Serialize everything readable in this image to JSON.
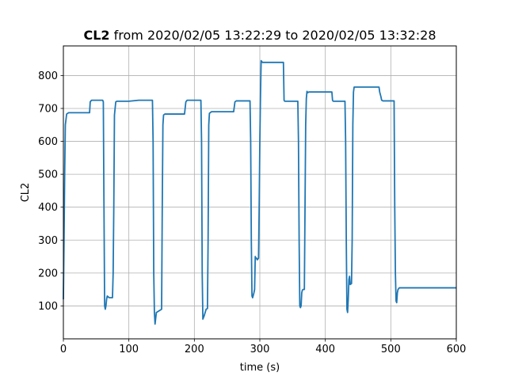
{
  "chart_data": {
    "type": "line",
    "title_bold": "CL2",
    "title_rest": " from 2020/02/05 13:22:29 to 2020/02/05 13:32:28",
    "xlabel": "time (s)",
    "ylabel": "CL2",
    "xlim": [
      0,
      600
    ],
    "ylim": [
      0,
      890
    ],
    "xticks": [
      0,
      100,
      200,
      300,
      400,
      500,
      600
    ],
    "yticks": [
      100,
      200,
      300,
      400,
      500,
      600,
      700,
      800
    ],
    "grid": true,
    "line_color": "#1f77b4",
    "series": [
      {
        "x": [
          0,
          1,
          2,
          3,
          5,
          8,
          40,
          41,
          43,
          60,
          61,
          62,
          63,
          64,
          65,
          66,
          67,
          70,
          75,
          76,
          77,
          78,
          80,
          82,
          100,
          115,
          136,
          137,
          138,
          139,
          140,
          142,
          150,
          151,
          152,
          153,
          155,
          185,
          187,
          189,
          210,
          211,
          212,
          213,
          215,
          218,
          220,
          221,
          222,
          223,
          226,
          230,
          260,
          262,
          264,
          285,
          286,
          287,
          288,
          289,
          291,
          292,
          293,
          294,
          295,
          296,
          298,
          299,
          300,
          301,
          302,
          304,
          315,
          336,
          337,
          338,
          340,
          358,
          359,
          360,
          361,
          362,
          363,
          364,
          365,
          366,
          368,
          369,
          370,
          371,
          372,
          373,
          375,
          410,
          411,
          412,
          413,
          430,
          431,
          432,
          433,
          434,
          435,
          436,
          437,
          438,
          440,
          441,
          442,
          443,
          444,
          446,
          475,
          482,
          483,
          485,
          486,
          488,
          505,
          506,
          507,
          508,
          509,
          510,
          511,
          513,
          515,
          600
        ],
        "y": [
          120,
          300,
          500,
          650,
          683,
          687,
          687,
          720,
          725,
          725,
          720,
          400,
          100,
          90,
          100,
          120,
          130,
          125,
          125,
          200,
          400,
          680,
          720,
          722,
          722,
          725,
          725,
          600,
          200,
          80,
          45,
          80,
          90,
          400,
          650,
          680,
          683,
          683,
          720,
          725,
          725,
          600,
          200,
          60,
          70,
          90,
          92,
          300,
          650,
          685,
          690,
          690,
          690,
          720,
          723,
          723,
          600,
          300,
          130,
          125,
          140,
          150,
          250,
          245,
          245,
          240,
          245,
          400,
          600,
          740,
          845,
          840,
          840,
          840,
          725,
          722,
          722,
          722,
          600,
          300,
          100,
          95,
          100,
          140,
          148,
          150,
          150,
          400,
          650,
          730,
          752,
          748,
          750,
          750,
          725,
          722,
          722,
          722,
          600,
          300,
          90,
          80,
          120,
          180,
          190,
          165,
          168,
          300,
          650,
          750,
          765,
          765,
          765,
          765,
          750,
          735,
          725,
          723,
          723,
          400,
          200,
          115,
          110,
          140,
          150,
          155,
          155,
          155
        ]
      }
    ]
  }
}
